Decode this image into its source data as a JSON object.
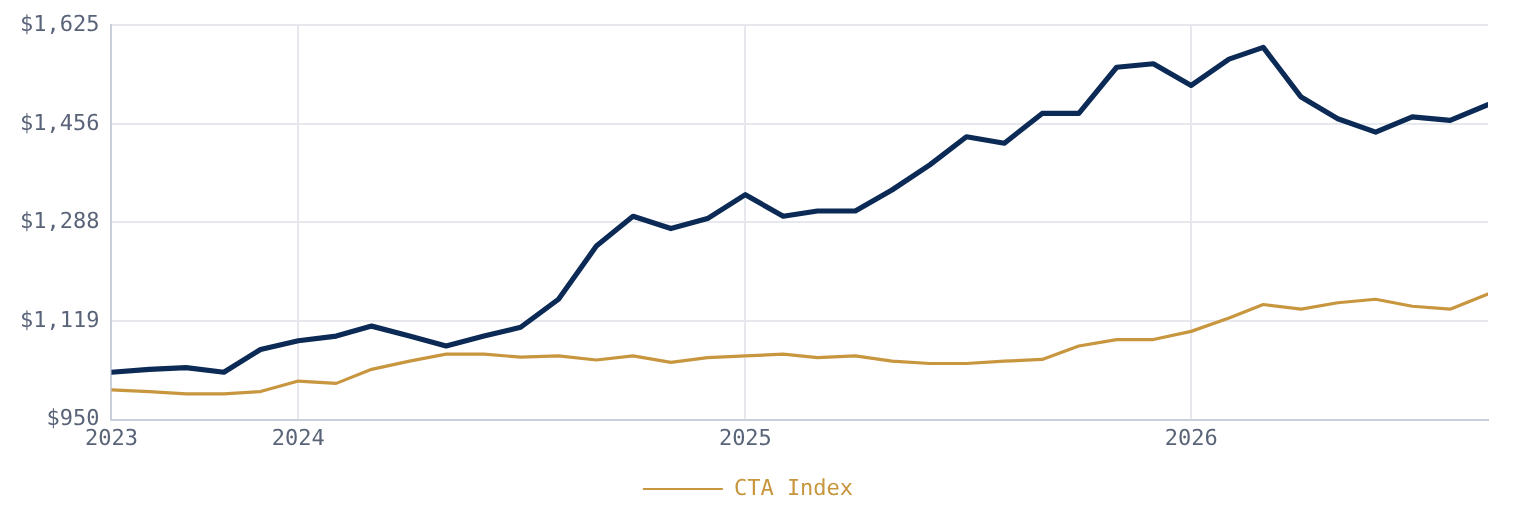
{
  "chart_data": {
    "type": "line",
    "x": [
      "2023-08",
      "2023-09",
      "2023-10",
      "2023-11",
      "2023-12",
      "2024-01",
      "2024-02",
      "2024-03",
      "2024-04",
      "2024-05",
      "2024-06",
      "2024-07",
      "2024-08",
      "2024-09",
      "2024-10",
      "2024-11",
      "2024-12",
      "2025-01",
      "2025-02",
      "2025-03",
      "2025-04",
      "2025-05",
      "2025-06",
      "2025-07",
      "2025-08",
      "2025-09",
      "2025-10",
      "2025-11",
      "2025-12",
      "2026-01",
      "2026-02",
      "2026-03",
      "2026-04",
      "2026-05",
      "2026-06",
      "2026-07",
      "2026-08",
      "2026-09"
    ],
    "series": [
      {
        "color": "#0b2a55",
        "values": [
          1031,
          1036,
          1039,
          1031,
          1070,
          1085,
          1093,
          1110,
          1093,
          1076,
          1093,
          1108,
          1156,
          1247,
          1298,
          1277,
          1294,
          1335,
          1298,
          1307,
          1307,
          1343,
          1386,
          1434,
          1423,
          1474,
          1474,
          1553,
          1559,
          1522,
          1567,
          1587,
          1502,
          1465,
          1442,
          1468,
          1462,
          1489
        ]
      },
      {
        "name": "CTA Index",
        "color": "#c8963e",
        "values": [
          1001,
          998,
          994,
          994,
          998,
          1016,
          1012,
          1036,
          1050,
          1062,
          1062,
          1057,
          1059,
          1052,
          1059,
          1048,
          1056,
          1059,
          1062,
          1056,
          1059,
          1050,
          1046,
          1046,
          1050,
          1053,
          1076,
          1087,
          1087,
          1101,
          1124,
          1147,
          1139,
          1150,
          1156,
          1144,
          1139,
          1165
        ]
      }
    ],
    "xlim": [
      "2023-08",
      "2026-09"
    ],
    "xticks": [
      {
        "value": "2023-08",
        "label": "2023"
      },
      {
        "value": "2024-01",
        "label": "2024"
      },
      {
        "value": "2025-01",
        "label": "2025"
      },
      {
        "value": "2026-01",
        "label": "2026"
      }
    ],
    "ylim": [
      950,
      1625
    ],
    "yticks": [
      {
        "value": 950,
        "label": "$950"
      },
      {
        "value": 1118.75,
        "label": "$1,119"
      },
      {
        "value": 1287.5,
        "label": "$1,288"
      },
      {
        "value": 1456.25,
        "label": "$1,456"
      },
      {
        "value": 1625,
        "label": "$1,625"
      }
    ],
    "grid": true,
    "legend": "bottom",
    "marker": "none",
    "line_style": "solid"
  }
}
